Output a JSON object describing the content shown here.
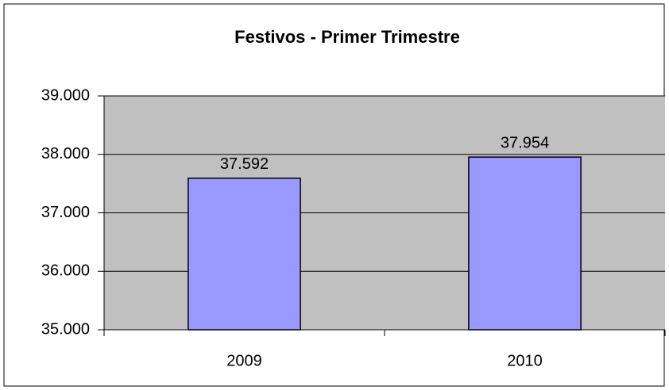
{
  "chart_data": {
    "type": "bar",
    "title": "Festivos - Primer Trimestre",
    "categories": [
      "2009",
      "2010"
    ],
    "values": [
      37592,
      37954
    ],
    "value_labels": [
      "37.592",
      "37.954"
    ],
    "color": "#9999ff",
    "ylim": [
      35000,
      39000
    ],
    "yticks": [
      {
        "value": 35000,
        "label": "35.000"
      },
      {
        "value": 36000,
        "label": "36.000"
      },
      {
        "value": 37000,
        "label": "37.000"
      },
      {
        "value": 38000,
        "label": "38.000"
      },
      {
        "value": 39000,
        "label": "39.000"
      }
    ],
    "grid": true
  }
}
